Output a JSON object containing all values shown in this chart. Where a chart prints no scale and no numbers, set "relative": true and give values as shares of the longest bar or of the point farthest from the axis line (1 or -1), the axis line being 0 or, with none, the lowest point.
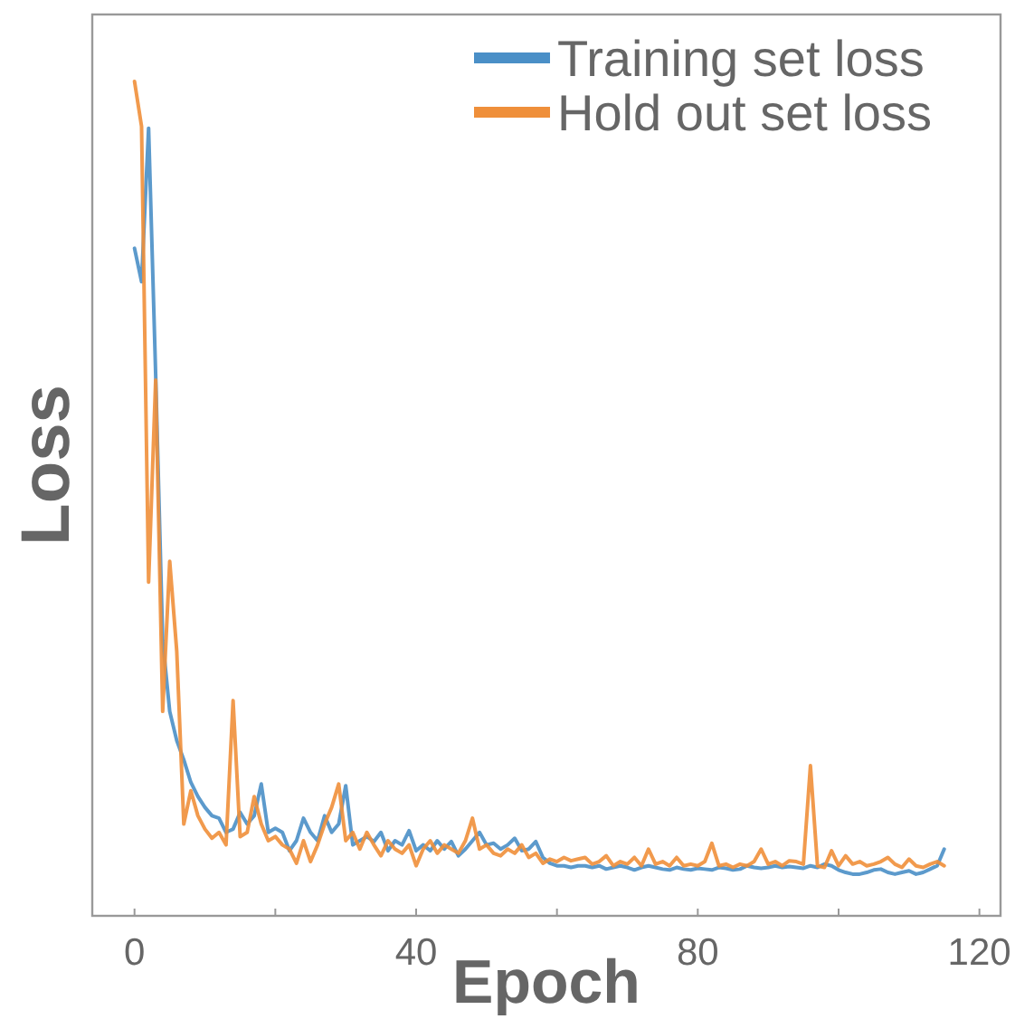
{
  "chart_data": {
    "type": "line",
    "xlabel": "Epoch",
    "ylabel": "Loss",
    "relative": true,
    "x": [
      0,
      1,
      2,
      3,
      4,
      5,
      6,
      7,
      8,
      9,
      10,
      11,
      12,
      13,
      14,
      15,
      16,
      17,
      18,
      19,
      20,
      21,
      22,
      23,
      24,
      25,
      26,
      27,
      28,
      29,
      30,
      31,
      32,
      33,
      34,
      35,
      36,
      37,
      38,
      39,
      40,
      41,
      42,
      43,
      44,
      45,
      46,
      47,
      48,
      49,
      50,
      51,
      52,
      53,
      54,
      55,
      56,
      57,
      58,
      59,
      60,
      61,
      62,
      63,
      64,
      65,
      66,
      67,
      68,
      69,
      70,
      71,
      72,
      73,
      74,
      75,
      76,
      77,
      78,
      79,
      80,
      81,
      82,
      83,
      84,
      85,
      86,
      87,
      88,
      89,
      90,
      91,
      92,
      93,
      94,
      95,
      96,
      97,
      98,
      99,
      100,
      101,
      102,
      103,
      104,
      105,
      106,
      107,
      108,
      109,
      110,
      111,
      112,
      113,
      114,
      115
    ],
    "xlim": [
      -6,
      123
    ],
    "xticks": [
      0,
      {
        "value": 20,
        "label": null
      },
      40,
      {
        "value": 60,
        "label": null
      },
      80,
      {
        "value": 100,
        "label": null
      },
      120
    ],
    "tick_labels": "x",
    "legend": "top right",
    "grid": false,
    "series": [
      {
        "name": "Training set loss",
        "color": "#4a8fc7",
        "values": [
          0.8,
          0.76,
          0.944,
          0.65,
          0.33,
          0.245,
          0.21,
          0.187,
          0.16,
          0.143,
          0.13,
          0.12,
          0.117,
          0.1,
          0.104,
          0.124,
          0.11,
          0.12,
          0.158,
          0.1,
          0.105,
          0.1,
          0.078,
          0.09,
          0.117,
          0.1,
          0.09,
          0.12,
          0.1,
          0.11,
          0.156,
          0.085,
          0.09,
          0.095,
          0.089,
          0.1,
          0.078,
          0.09,
          0.085,
          0.102,
          0.078,
          0.085,
          0.078,
          0.09,
          0.08,
          0.089,
          0.072,
          0.08,
          0.09,
          0.1,
          0.085,
          0.087,
          0.08,
          0.085,
          0.093,
          0.078,
          0.08,
          0.089,
          0.07,
          0.063,
          0.06,
          0.06,
          0.058,
          0.06,
          0.06,
          0.058,
          0.06,
          0.056,
          0.058,
          0.06,
          0.058,
          0.055,
          0.058,
          0.06,
          0.058,
          0.056,
          0.055,
          0.058,
          0.056,
          0.055,
          0.057,
          0.056,
          0.055,
          0.058,
          0.057,
          0.055,
          0.056,
          0.06,
          0.058,
          0.057,
          0.058,
          0.06,
          0.058,
          0.059,
          0.058,
          0.057,
          0.06,
          0.058,
          0.062,
          0.06,
          0.055,
          0.052,
          0.05,
          0.05,
          0.052,
          0.055,
          0.056,
          0.052,
          0.05,
          0.052,
          0.054,
          0.05,
          0.052,
          0.056,
          0.06,
          0.08
        ]
      },
      {
        "name": "Hold out set loss",
        "color": "#ef8f3a",
        "values": [
          1.0,
          0.946,
          0.4,
          0.642,
          0.245,
          0.425,
          0.317,
          0.11,
          0.15,
          0.12,
          0.104,
          0.093,
          0.1,
          0.085,
          0.258,
          0.095,
          0.1,
          0.143,
          0.11,
          0.09,
          0.095,
          0.085,
          0.08,
          0.063,
          0.09,
          0.065,
          0.085,
          0.11,
          0.13,
          0.158,
          0.09,
          0.1,
          0.08,
          0.1,
          0.085,
          0.072,
          0.09,
          0.08,
          0.075,
          0.085,
          0.06,
          0.08,
          0.09,
          0.075,
          0.085,
          0.08,
          0.075,
          0.09,
          0.117,
          0.08,
          0.085,
          0.075,
          0.072,
          0.08,
          0.075,
          0.085,
          0.07,
          0.075,
          0.063,
          0.068,
          0.065,
          0.07,
          0.066,
          0.068,
          0.07,
          0.062,
          0.065,
          0.072,
          0.06,
          0.065,
          0.062,
          0.07,
          0.06,
          0.08,
          0.062,
          0.065,
          0.06,
          0.07,
          0.06,
          0.062,
          0.06,
          0.065,
          0.087,
          0.06,
          0.062,
          0.058,
          0.062,
          0.06,
          0.065,
          0.08,
          0.062,
          0.065,
          0.06,
          0.066,
          0.065,
          0.062,
          0.18,
          0.06,
          0.058,
          0.078,
          0.06,
          0.072,
          0.062,
          0.065,
          0.06,
          0.062,
          0.065,
          0.07,
          0.062,
          0.058,
          0.068,
          0.06,
          0.058,
          0.062,
          0.065,
          0.06
        ]
      }
    ]
  }
}
